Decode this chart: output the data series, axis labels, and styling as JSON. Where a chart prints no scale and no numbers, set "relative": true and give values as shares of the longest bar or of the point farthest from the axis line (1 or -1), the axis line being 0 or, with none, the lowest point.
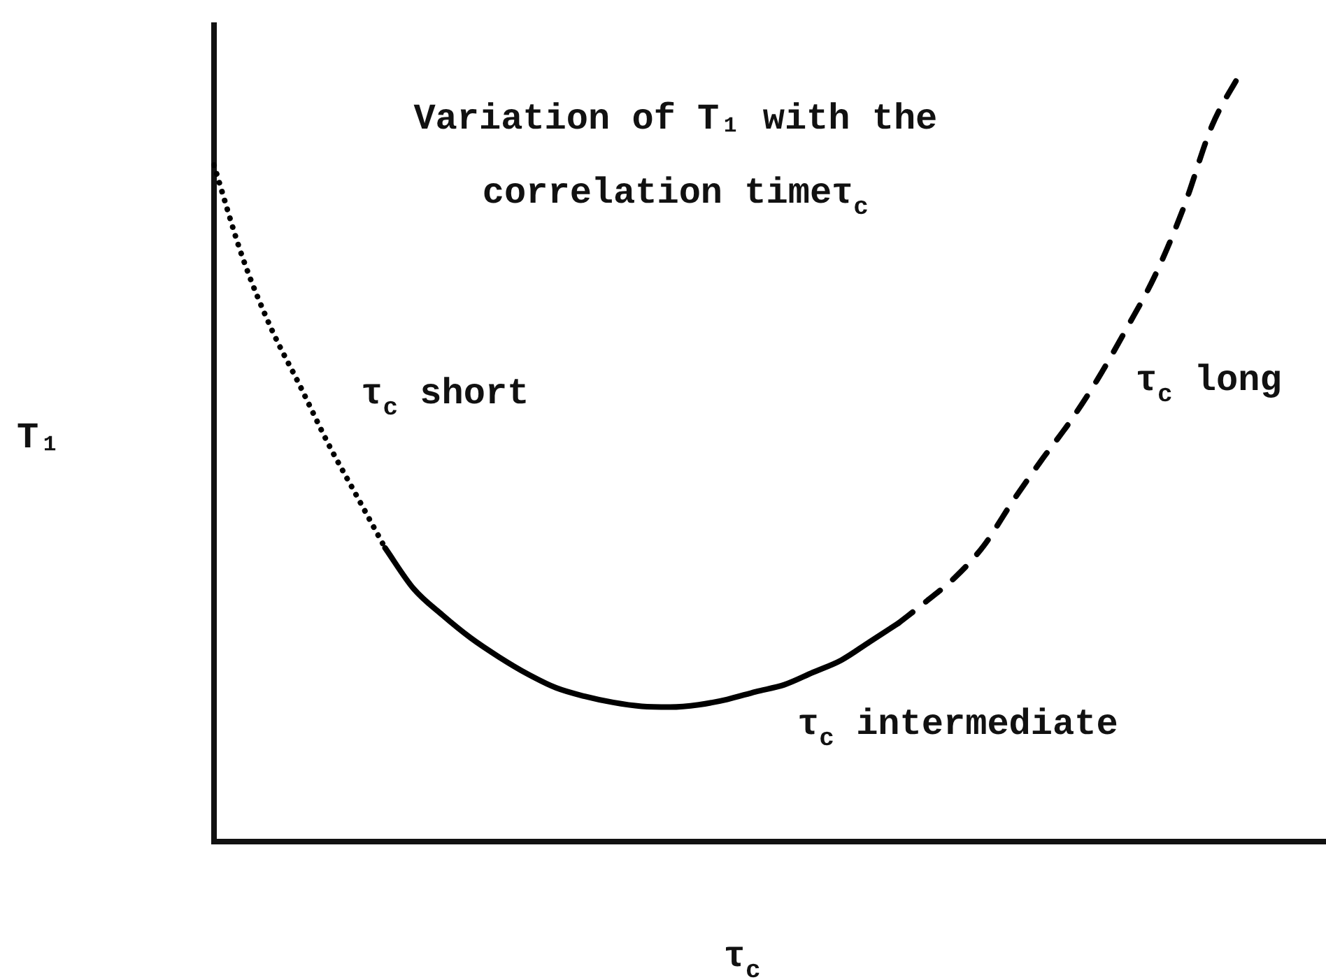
{
  "chart_data": {
    "type": "line",
    "relative": true,
    "title": "Variation of T₁ with the correlation timeτ$_{c}$",
    "xlabel": "τ$_{c}$",
    "ylabel": "T₁",
    "categories": [
      null,
      null,
      null,
      null,
      null,
      null,
      null,
      null,
      null,
      null,
      null,
      null,
      null,
      null,
      null,
      null,
      null,
      null,
      null,
      null,
      null,
      null,
      null,
      null,
      null,
      null,
      null,
      null,
      null,
      null,
      null,
      null,
      null,
      null,
      null,
      null,
      null,
      null,
      null,
      null
    ],
    "series": [
      {
        "name": "τ$_{c}$ short",
        "color": "#000000",
        "line_style": "dotted",
        "values": [
          0.88,
          0.76,
          0.668,
          0.594,
          0.518,
          0.45,
          0.382,
          null,
          null,
          null,
          null,
          null,
          null,
          null,
          null,
          null,
          null,
          null,
          null,
          null,
          null,
          null,
          null,
          null,
          null,
          null,
          null,
          null,
          null,
          null,
          null,
          null,
          null,
          null,
          null,
          null,
          null,
          null,
          null,
          null
        ]
      },
      {
        "name": "τ$_{c}$ intermediate",
        "color": "#000000",
        "line_style": "solid",
        "values": [
          null,
          null,
          null,
          null,
          null,
          null,
          0.382,
          0.329,
          0.295,
          0.265,
          0.24,
          0.218,
          0.2,
          0.189,
          0.181,
          0.176,
          0.175,
          0.178,
          0.185,
          0.195,
          0.204,
          0.22,
          0.236,
          0.26,
          0.284,
          null,
          null,
          null,
          null,
          null,
          null,
          null,
          null,
          null,
          null,
          null,
          null,
          null,
          null,
          null
        ]
      },
      {
        "name": "τ$_{c}$ long",
        "color": "#000000",
        "line_style": "dashed",
        "values": [
          null,
          null,
          null,
          null,
          null,
          null,
          null,
          null,
          null,
          null,
          null,
          null,
          null,
          null,
          null,
          null,
          null,
          null,
          null,
          null,
          null,
          null,
          null,
          null,
          0.284,
          0.313,
          0.344,
          0.385,
          0.442,
          0.495,
          0.545,
          0.602,
          0.667,
          0.736,
          0.824,
          0.931,
          1,
          null,
          null,
          null
        ]
      }
    ]
  }
}
